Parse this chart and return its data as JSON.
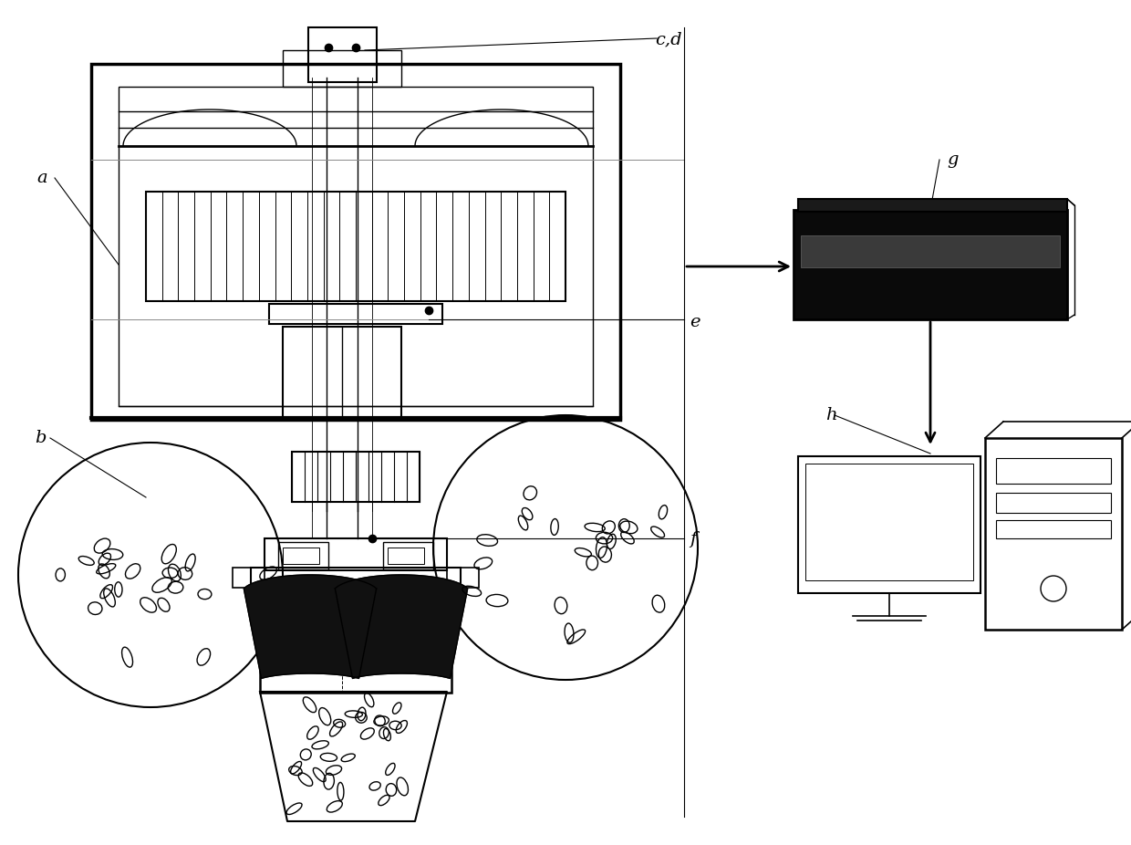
{
  "bg_color": "#ffffff",
  "lc": "#000000",
  "label_a": "a",
  "label_b": "b",
  "label_cd": "c,d",
  "label_e": "e",
  "label_f": "f",
  "label_g": "g",
  "label_h": "h",
  "figsize": [
    12.4,
    9.26
  ],
  "dpi": 100
}
